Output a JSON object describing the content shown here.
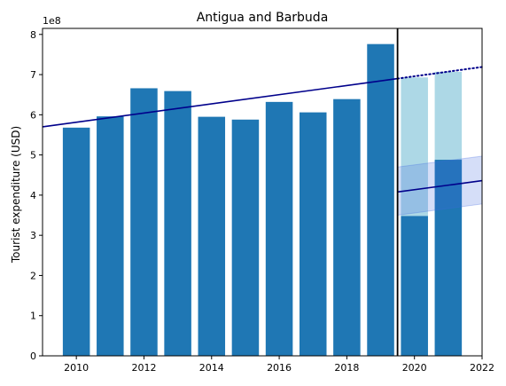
{
  "chart_data": {
    "type": "bar",
    "title": "Antigua and Barbuda",
    "xlabel": "",
    "ylabel": "Tourist expenditure (USD)",
    "y_multiplier_label": "1e8",
    "xlim": [
      2009,
      2022
    ],
    "ylim": [
      0,
      8.15
    ],
    "x_ticks": [
      2010,
      2012,
      2014,
      2016,
      2018,
      2020,
      2022
    ],
    "y_ticks": [
      0,
      1,
      2,
      3,
      4,
      5,
      6,
      7,
      8
    ],
    "bars": {
      "color": "#1f77b4",
      "x": [
        2010,
        2011,
        2012,
        2013,
        2014,
        2015,
        2016,
        2017,
        2018,
        2019,
        2020,
        2021
      ],
      "values": [
        5.68,
        5.96,
        6.66,
        6.59,
        5.95,
        5.88,
        6.32,
        6.06,
        6.39,
        7.76,
        3.48,
        4.88
      ]
    },
    "counterfactual_bars": {
      "color": "#add8e6",
      "x": [
        2020,
        2021
      ],
      "values": [
        6.93,
        7.07
      ]
    },
    "trend_line": {
      "color": "#00008b",
      "x_start": 2009,
      "x_end": 2019.5,
      "y_start": 5.7,
      "y_end": 6.9,
      "projection_x_end": 2022,
      "projection_y_end": 7.19,
      "projection_style": "dotted"
    },
    "post_trend_line": {
      "color": "#00008b",
      "x_start": 2019.5,
      "x_end": 2022,
      "y_start": 4.08,
      "y_end": 4.36
    },
    "post_trend_band": {
      "color": "#4169e1",
      "upper": [
        4.7,
        4.97
      ],
      "lower": [
        3.5,
        3.78
      ]
    },
    "cutoff_line": {
      "x": 2019.5,
      "color": "#000000"
    },
    "grid": false,
    "legend": "none"
  }
}
